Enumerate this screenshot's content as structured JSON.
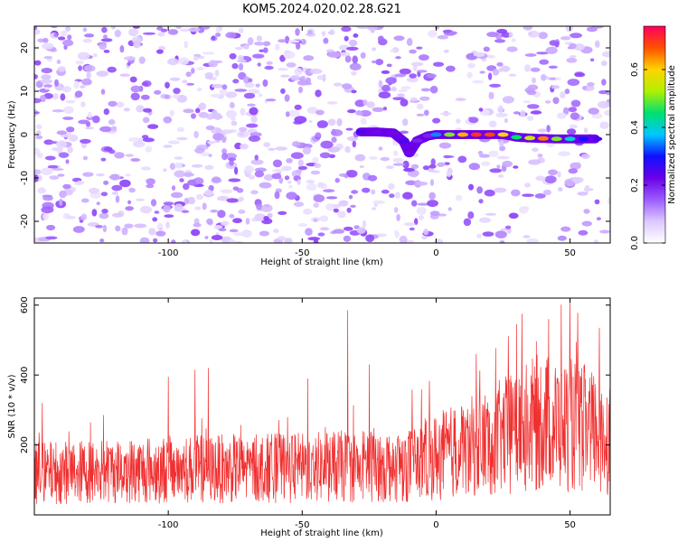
{
  "title": "KOM5.2024.020.02.28.G21",
  "colors": {
    "snr_line": "#f03030",
    "cmap": [
      "#ffffff",
      "#dcc8ff",
      "#9b5cff",
      "#6a00e8",
      "#1010ff",
      "#00c8ff",
      "#00e070",
      "#b0f000",
      "#ffd400",
      "#ff5000",
      "#ff0060"
    ]
  },
  "chart_data": [
    {
      "type": "heatmap",
      "xlabel": "Height of straight line (km)",
      "ylabel": "Frequency (Hz)",
      "xlim": [
        -150,
        65
      ],
      "ylim": [
        -25,
        25
      ],
      "xticks": [
        -100,
        -50,
        0,
        50
      ],
      "yticks": [
        -20,
        -10,
        0,
        10,
        20
      ],
      "colorbar": {
        "label": "Normalized spectral amplitude",
        "range": [
          0,
          0.75
        ],
        "ticks": [
          0.0,
          0.2,
          0.4,
          0.6
        ]
      },
      "signal_track": [
        {
          "x": -28,
          "y": 0.6,
          "z": 0.25
        },
        {
          "x": -22,
          "y": 0.6,
          "z": 0.22
        },
        {
          "x": -16,
          "y": 0.4,
          "z": 0.22
        },
        {
          "x": -12,
          "y": -1.6,
          "z": 0.25
        },
        {
          "x": -10,
          "y": -4.2,
          "z": 0.22
        },
        {
          "x": -7,
          "y": -1.4,
          "z": 0.2
        },
        {
          "x": -3,
          "y": -0.3,
          "z": 0.2
        },
        {
          "x": 0,
          "y": 0,
          "z": 0.35
        },
        {
          "x": 5,
          "y": 0,
          "z": 0.5
        },
        {
          "x": 10,
          "y": 0,
          "z": 0.62
        },
        {
          "x": 15,
          "y": 0,
          "z": 0.7
        },
        {
          "x": 20,
          "y": 0,
          "z": 0.68
        },
        {
          "x": 25,
          "y": 0,
          "z": 0.6
        },
        {
          "x": 30,
          "y": -0.6,
          "z": 0.45
        },
        {
          "x": 35,
          "y": -0.8,
          "z": 0.55
        },
        {
          "x": 40,
          "y": -0.9,
          "z": 0.65
        },
        {
          "x": 45,
          "y": -1.0,
          "z": 0.5
        },
        {
          "x": 50,
          "y": -1.0,
          "z": 0.4
        },
        {
          "x": 55,
          "y": -1.0,
          "z": 0.3
        },
        {
          "x": 60,
          "y": -1.0,
          "z": 0.25
        }
      ]
    },
    {
      "type": "line",
      "xlabel": "Height of straight line (km)",
      "ylabel": "SNR (10 * v/v)",
      "xlim": [
        -150,
        65
      ],
      "ylim": [
        0,
        620
      ],
      "xticks": [
        -100,
        -50,
        0,
        50
      ],
      "yticks": [
        200,
        400,
        600
      ],
      "series": [
        {
          "name": "",
          "trend": [
            {
              "x": -150,
              "y": 120
            },
            {
              "x": -100,
              "y": 130
            },
            {
              "x": -50,
              "y": 135
            },
            {
              "x": -10,
              "y": 145
            },
            {
              "x": 20,
              "y": 210
            },
            {
              "x": 40,
              "y": 270
            },
            {
              "x": 55,
              "y": 250
            },
            {
              "x": 65,
              "y": 220
            }
          ],
          "peaks": [
            {
              "x": -147,
              "y": 320
            },
            {
              "x": -100,
              "y": 395
            },
            {
              "x": -90,
              "y": 415
            },
            {
              "x": -85,
              "y": 420
            },
            {
              "x": -48,
              "y": 390
            },
            {
              "x": -33,
              "y": 585
            },
            {
              "x": -25,
              "y": 430
            },
            {
              "x": 15,
              "y": 460
            },
            {
              "x": 30,
              "y": 545
            },
            {
              "x": 32,
              "y": 575
            },
            {
              "x": 42,
              "y": 560
            },
            {
              "x": 50,
              "y": 615
            },
            {
              "x": 61,
              "y": 535
            }
          ]
        }
      ]
    }
  ]
}
